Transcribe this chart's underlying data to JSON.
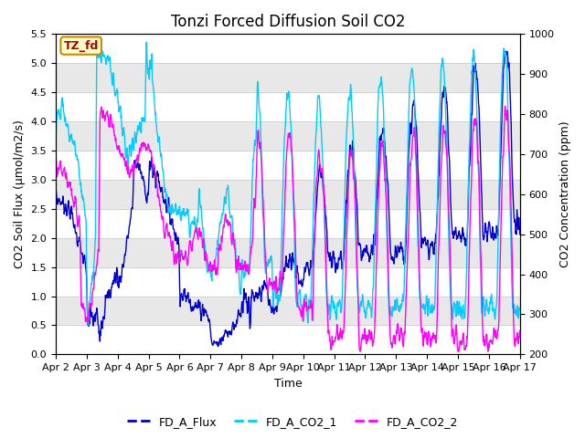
{
  "title": "Tonzi Forced Diffusion Soil CO2",
  "xlabel": "Time",
  "ylabel_left": "CO2 Soil Flux (μmol/m2/s)",
  "ylabel_right": "CO2 Concentration (ppm)",
  "ylim_left": [
    0.0,
    5.5
  ],
  "ylim_right": [
    200,
    1000
  ],
  "xlim": [
    0,
    15
  ],
  "xtick_labels": [
    "Apr 2",
    "Apr 3",
    "Apr 4",
    "Apr 5",
    "Apr 6",
    "Apr 7",
    "Apr 8",
    "Apr 9",
    "Apr 10",
    "Apr 11",
    "Apr 12",
    "Apr 13",
    "Apr 14",
    "Apr 15",
    "Apr 16",
    "Apr 17"
  ],
  "label_box_text": "TZ_fd",
  "label_box_facecolor": "#ffffcc",
  "label_box_edgecolor": "#cc8800",
  "label_box_textcolor": "#aa0000",
  "flux_color": "#0000cc",
  "co2_1_color": "#00ccff",
  "co2_2_color": "#ff00ff",
  "legend_labels": [
    "FD_A_Flux",
    "FD_A_CO2_1",
    "FD_A_CO2_2"
  ],
  "background_color": "#ffffff",
  "band_color": "#e8e8e8",
  "grid_color": "#bbbbbb",
  "flux_linewidth": 1.0,
  "co2_linewidth": 1.0,
  "title_fontsize": 12,
  "axis_fontsize": 9
}
